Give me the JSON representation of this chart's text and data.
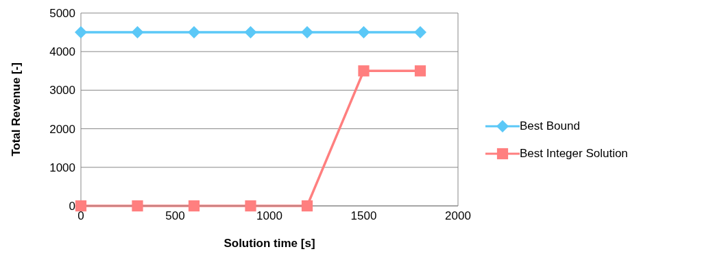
{
  "chart_data": {
    "type": "line",
    "xlabel": "Solution time [s]",
    "ylabel": "Total Revenue [-]",
    "x": [
      0,
      300,
      600,
      900,
      1200,
      1500,
      1800
    ],
    "series": [
      {
        "name": "Best Bound",
        "color": "#5bc8f7",
        "marker": "diamond",
        "values": [
          4500,
          4500,
          4500,
          4500,
          4500,
          4500,
          4500
        ]
      },
      {
        "name": "Best Integer Solution",
        "color": "#ff7f7f",
        "marker": "square",
        "values": [
          0,
          0,
          0,
          0,
          0,
          3500,
          3500
        ]
      }
    ],
    "xlim": [
      0,
      2000
    ],
    "xticks": [
      0,
      500,
      1000,
      1500,
      2000
    ],
    "ylim": [
      0,
      5000
    ],
    "yticks": [
      0,
      1000,
      2000,
      3000,
      4000,
      5000
    ],
    "grid": "y",
    "legend": "right",
    "line_style": "solid"
  }
}
